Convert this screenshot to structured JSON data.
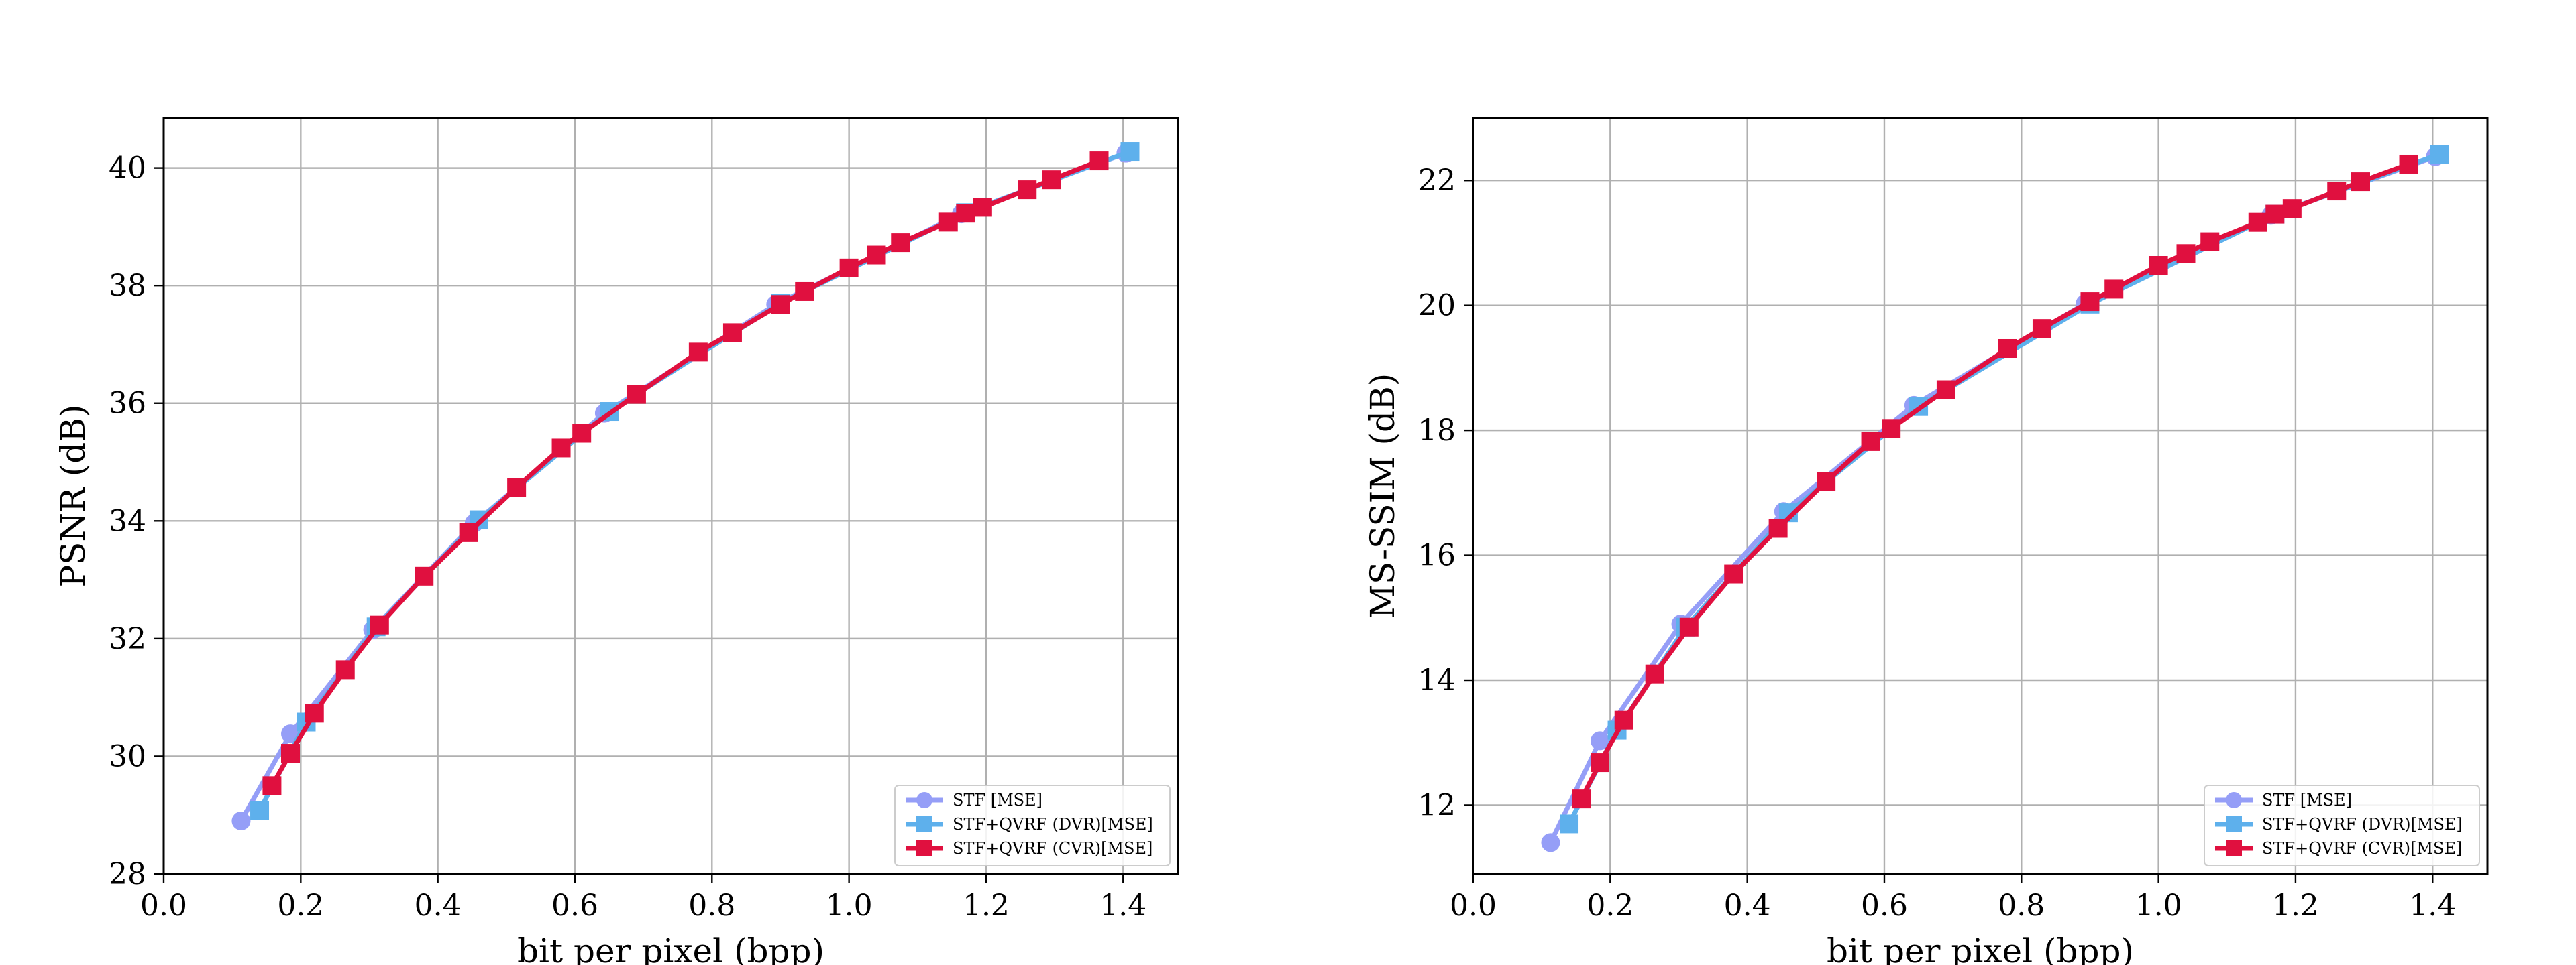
{
  "chart_data": [
    {
      "type": "line",
      "xlabel": "bit per pixel (bpp)",
      "ylabel": "PSNR (dB)",
      "xlim": [
        0.0,
        1.48
      ],
      "ylim": [
        28.0,
        40.85
      ],
      "xticks": [
        0.0,
        0.2,
        0.4,
        0.6,
        0.8,
        1.0,
        1.2,
        1.4
      ],
      "yticks": [
        28,
        30,
        32,
        34,
        36,
        38,
        40
      ],
      "grid": true,
      "legend_position": "lower-right",
      "series": [
        {
          "name": "STF [MSE]",
          "color": "#959ef7",
          "marker": "circle",
          "points": [
            [
              0.113,
              28.9
            ],
            [
              0.185,
              30.38
            ],
            [
              0.305,
              32.15
            ],
            [
              0.453,
              33.96
            ],
            [
              0.643,
              35.83
            ],
            [
              0.893,
              37.68
            ],
            [
              1.164,
              39.22
            ],
            [
              1.404,
              40.25
            ]
          ]
        },
        {
          "name": "STF+QVRF (DVR)[MSE]",
          "color": "#5eb0ec",
          "marker": "square",
          "points": [
            [
              0.14,
              29.08
            ],
            [
              0.208,
              30.58
            ],
            [
              0.31,
              32.2
            ],
            [
              0.46,
              34.02
            ],
            [
              0.65,
              35.86
            ],
            [
              0.9,
              37.7
            ],
            [
              1.17,
              39.24
            ],
            [
              1.41,
              40.28
            ]
          ]
        },
        {
          "name": "STF+QVRF (CVR)[MSE]",
          "color": "#e0103f",
          "marker": "square",
          "points": [
            [
              0.158,
              29.5
            ],
            [
              0.185,
              30.05
            ],
            [
              0.22,
              30.73
            ],
            [
              0.265,
              31.47
            ],
            [
              0.315,
              32.23
            ],
            [
              0.38,
              33.06
            ],
            [
              0.445,
              33.8
            ],
            [
              0.515,
              34.57
            ],
            [
              0.58,
              35.24
            ],
            [
              0.61,
              35.49
            ],
            [
              0.69,
              36.15
            ],
            [
              0.78,
              36.87
            ],
            [
              0.83,
              37.2
            ],
            [
              0.9,
              37.68
            ],
            [
              0.935,
              37.9
            ],
            [
              1.0,
              38.3
            ],
            [
              1.04,
              38.52
            ],
            [
              1.075,
              38.73
            ],
            [
              1.145,
              39.08
            ],
            [
              1.17,
              39.23
            ],
            [
              1.195,
              39.33
            ],
            [
              1.26,
              39.63
            ],
            [
              1.295,
              39.8
            ],
            [
              1.365,
              40.12
            ]
          ]
        }
      ]
    },
    {
      "type": "line",
      "xlabel": "bit per pixel (bpp)",
      "ylabel": "MS-SSIM (dB)",
      "xlim": [
        0.0,
        1.48
      ],
      "ylim": [
        10.9,
        23.0
      ],
      "xticks": [
        0.0,
        0.2,
        0.4,
        0.6,
        0.8,
        1.0,
        1.2,
        1.4
      ],
      "yticks": [
        12,
        14,
        16,
        18,
        20,
        22
      ],
      "grid": true,
      "legend_position": "lower-right",
      "series": [
        {
          "name": "STF [MSE]",
          "color": "#959ef7",
          "marker": "circle",
          "points": [
            [
              0.113,
              11.4
            ],
            [
              0.185,
              13.03
            ],
            [
              0.303,
              14.9
            ],
            [
              0.453,
              16.7
            ],
            [
              0.643,
              18.4
            ],
            [
              0.893,
              20.03
            ],
            [
              1.164,
              21.44
            ],
            [
              1.404,
              22.38
            ]
          ]
        },
        {
          "name": "STF+QVRF (DVR)[MSE]",
          "color": "#5eb0ec",
          "marker": "square",
          "points": [
            [
              0.14,
              11.7
            ],
            [
              0.21,
              13.2
            ],
            [
              0.31,
              14.85
            ],
            [
              0.46,
              16.68
            ],
            [
              0.65,
              18.38
            ],
            [
              0.9,
              20.02
            ],
            [
              1.17,
              21.46
            ],
            [
              1.41,
              22.42
            ]
          ]
        },
        {
          "name": "STF+QVRF (CVR)[MSE]",
          "color": "#e0103f",
          "marker": "square",
          "points": [
            [
              0.158,
              12.1
            ],
            [
              0.185,
              12.68
            ],
            [
              0.22,
              13.36
            ],
            [
              0.265,
              14.1
            ],
            [
              0.315,
              14.85
            ],
            [
              0.38,
              15.7
            ],
            [
              0.445,
              16.43
            ],
            [
              0.515,
              17.18
            ],
            [
              0.58,
              17.82
            ],
            [
              0.61,
              18.03
            ],
            [
              0.69,
              18.65
            ],
            [
              0.78,
              19.31
            ],
            [
              0.83,
              19.63
            ],
            [
              0.9,
              20.06
            ],
            [
              0.935,
              20.26
            ],
            [
              1.0,
              20.64
            ],
            [
              1.04,
              20.83
            ],
            [
              1.075,
              21.02
            ],
            [
              1.145,
              21.33
            ],
            [
              1.17,
              21.46
            ],
            [
              1.195,
              21.55
            ],
            [
              1.26,
              21.83
            ],
            [
              1.295,
              21.98
            ],
            [
              1.365,
              22.26
            ]
          ]
        }
      ]
    }
  ]
}
